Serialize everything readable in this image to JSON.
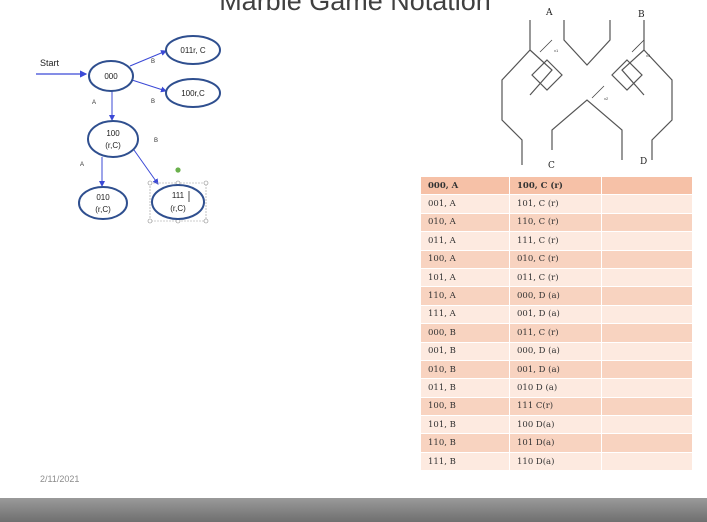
{
  "slide": {
    "title": "Marble Game Notation",
    "date": "2/11/2021"
  },
  "diagram": {
    "start_label": "Start",
    "nodes": {
      "n000": "000",
      "n011": "011r, C",
      "n100rc": "100r,C",
      "n100_line1": "100",
      "n100_line2": "(r,C)",
      "n010_line1": "010",
      "n010_line2": "(r,C)",
      "n111_line1": "111",
      "n111_line2": "(r,C)"
    },
    "edges": {
      "e1": "B",
      "e2": "B",
      "e3": "A",
      "e4": "A",
      "e5": "B"
    }
  },
  "marble": {
    "top_left": "A",
    "top_right": "B",
    "bottom_left": "C",
    "bottom_right": "D",
    "lever1": "x1",
    "lever2": "x2",
    "lever3": "x3"
  },
  "table": {
    "rows": [
      [
        "000, A",
        "100, C (r)",
        ""
      ],
      [
        "001, A",
        "101, C (r)",
        ""
      ],
      [
        "010, A",
        "110, C (r)",
        ""
      ],
      [
        "011, A",
        "111, C (r)",
        ""
      ],
      [
        "100, A",
        "010, C (r)",
        ""
      ],
      [
        "101, A",
        "011, C (r)",
        ""
      ],
      [
        "110, A",
        "000, D (a)",
        ""
      ],
      [
        "111, A",
        "001, D (a)",
        ""
      ],
      [
        "000, B",
        "011, C (r)",
        ""
      ],
      [
        "001, B",
        "000, D (a)",
        ""
      ],
      [
        "010, B",
        "001, D (a)",
        ""
      ],
      [
        "011, B",
        "010 D (a)",
        ""
      ],
      [
        "100, B",
        "111 C(r)",
        ""
      ],
      [
        "101, B",
        "100 D(a)",
        ""
      ],
      [
        "110, B",
        "101 D(a)",
        ""
      ],
      [
        "111, B",
        "110 D(a)",
        ""
      ]
    ]
  }
}
